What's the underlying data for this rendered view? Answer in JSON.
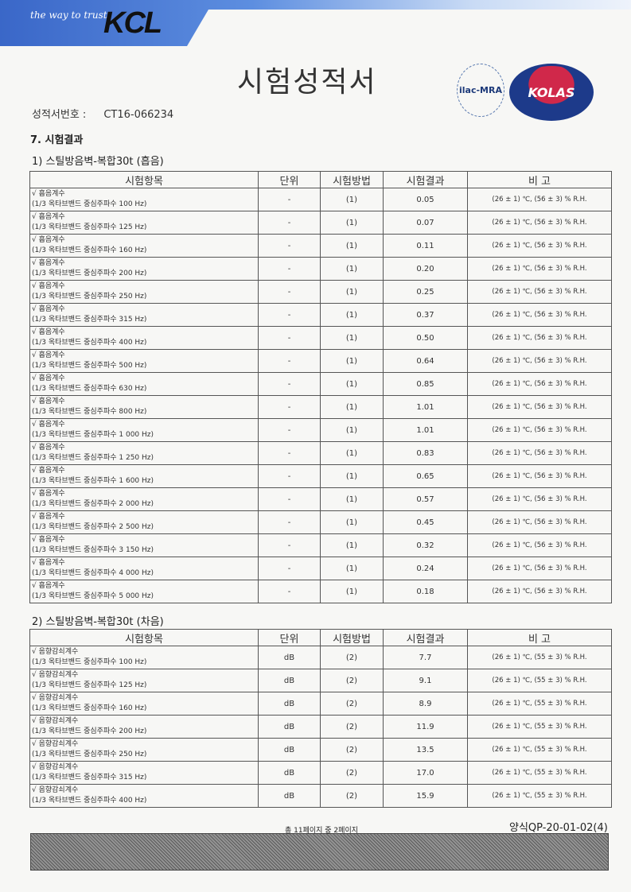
{
  "header": {
    "slogan": "the way to trust",
    "logo": "KCL",
    "title": "시험성적서",
    "ilac": "ilac-MRA",
    "kolas": "KOLAS"
  },
  "report": {
    "label": "성적서번호 :",
    "number": "CT16-066234"
  },
  "section": "7. 시험결과",
  "columns": [
    "시험항목",
    "단위",
    "시험방법",
    "시험결과",
    "비  고"
  ],
  "table1": {
    "title": "1) 스틸방음벽-복합30t (흡음)",
    "rows": [
      {
        "item": "√ 흡음계수",
        "band": "(1/3 옥타브밴드 중심주파수 100 Hz)",
        "unit": "-",
        "method": "(1)",
        "result": "0.05",
        "note": "(26 ± 1) ℃, (56 ± 3) % R.H."
      },
      {
        "item": "√ 흡음계수",
        "band": "(1/3 옥타브밴드 중심주파수 125 Hz)",
        "unit": "-",
        "method": "(1)",
        "result": "0.07",
        "note": "(26 ± 1) ℃, (56 ± 3) % R.H."
      },
      {
        "item": "√ 흡음계수",
        "band": "(1/3 옥타브밴드 중심주파수 160 Hz)",
        "unit": "-",
        "method": "(1)",
        "result": "0.11",
        "note": "(26 ± 1) ℃, (56 ± 3) % R.H."
      },
      {
        "item": "√ 흡음계수",
        "band": "(1/3 옥타브밴드 중심주파수 200 Hz)",
        "unit": "-",
        "method": "(1)",
        "result": "0.20",
        "note": "(26 ± 1) ℃, (56 ± 3) % R.H."
      },
      {
        "item": "√ 흡음계수",
        "band": "(1/3 옥타브밴드 중심주파수 250 Hz)",
        "unit": "-",
        "method": "(1)",
        "result": "0.25",
        "note": "(26 ± 1) ℃, (56 ± 3) % R.H."
      },
      {
        "item": "√ 흡음계수",
        "band": "(1/3 옥타브밴드 중심주파수 315 Hz)",
        "unit": "-",
        "method": "(1)",
        "result": "0.37",
        "note": "(26 ± 1) ℃, (56 ± 3) % R.H."
      },
      {
        "item": "√ 흡음계수",
        "band": "(1/3 옥타브밴드 중심주파수 400 Hz)",
        "unit": "-",
        "method": "(1)",
        "result": "0.50",
        "note": "(26 ± 1) ℃, (56 ± 3) % R.H."
      },
      {
        "item": "√ 흡음계수",
        "band": "(1/3 옥타브밴드 중심주파수 500 Hz)",
        "unit": "-",
        "method": "(1)",
        "result": "0.64",
        "note": "(26 ± 1) ℃, (56 ± 3) % R.H."
      },
      {
        "item": "√ 흡음계수",
        "band": "(1/3 옥타브밴드 중심주파수 630 Hz)",
        "unit": "-",
        "method": "(1)",
        "result": "0.85",
        "note": "(26 ± 1) ℃, (56 ± 3) % R.H."
      },
      {
        "item": "√ 흡음계수",
        "band": "(1/3 옥타브밴드 중심주파수 800 Hz)",
        "unit": "-",
        "method": "(1)",
        "result": "1.01",
        "note": "(26 ± 1) ℃, (56 ± 3) % R.H."
      },
      {
        "item": "√ 흡음계수",
        "band": "(1/3 옥타브밴드 중심주파수 1 000 Hz)",
        "unit": "-",
        "method": "(1)",
        "result": "1.01",
        "note": "(26 ± 1) ℃, (56 ± 3) % R.H."
      },
      {
        "item": "√ 흡음계수",
        "band": "(1/3 옥타브밴드 중심주파수 1 250 Hz)",
        "unit": "-",
        "method": "(1)",
        "result": "0.83",
        "note": "(26 ± 1) ℃, (56 ± 3) % R.H."
      },
      {
        "item": "√ 흡음계수",
        "band": "(1/3 옥타브밴드 중심주파수 1 600 Hz)",
        "unit": "-",
        "method": "(1)",
        "result": "0.65",
        "note": "(26 ± 1) ℃, (56 ± 3) % R.H."
      },
      {
        "item": "√ 흡음계수",
        "band": "(1/3 옥타브밴드 중심주파수 2 000 Hz)",
        "unit": "-",
        "method": "(1)",
        "result": "0.57",
        "note": "(26 ± 1) ℃, (56 ± 3) % R.H."
      },
      {
        "item": "√ 흡음계수",
        "band": "(1/3 옥타브밴드 중심주파수 2 500 Hz)",
        "unit": "-",
        "method": "(1)",
        "result": "0.45",
        "note": "(26 ± 1) ℃, (56 ± 3) % R.H."
      },
      {
        "item": "√ 흡음계수",
        "band": "(1/3 옥타브밴드 중심주파수 3 150 Hz)",
        "unit": "-",
        "method": "(1)",
        "result": "0.32",
        "note": "(26 ± 1) ℃, (56 ± 3) % R.H."
      },
      {
        "item": "√ 흡음계수",
        "band": "(1/3 옥타브밴드 중심주파수 4 000 Hz)",
        "unit": "-",
        "method": "(1)",
        "result": "0.24",
        "note": "(26 ± 1) ℃, (56 ± 3) % R.H."
      },
      {
        "item": "√ 흡음계수",
        "band": "(1/3 옥타브밴드 중심주파수 5 000 Hz)",
        "unit": "-",
        "method": "(1)",
        "result": "0.18",
        "note": "(26 ± 1) ℃, (56 ± 3) % R.H."
      }
    ]
  },
  "table2": {
    "title": "2) 스틸방음벽-복합30t (차음)",
    "rows": [
      {
        "item": "√ 음향감쇠계수",
        "band": "(1/3 옥타브밴드 중심주파수 100 Hz)",
        "unit": "dB",
        "method": "(2)",
        "result": "7.7",
        "note": "(26 ± 1) ℃, (55 ± 3) % R.H."
      },
      {
        "item": "√ 음향감쇠계수",
        "band": "(1/3 옥타브밴드 중심주파수 125 Hz)",
        "unit": "dB",
        "method": "(2)",
        "result": "9.1",
        "note": "(26 ± 1) ℃, (55 ± 3) % R.H."
      },
      {
        "item": "√ 음향감쇠계수",
        "band": "(1/3 옥타브밴드 중심주파수 160 Hz)",
        "unit": "dB",
        "method": "(2)",
        "result": "8.9",
        "note": "(26 ± 1) ℃, (55 ± 3) % R.H."
      },
      {
        "item": "√ 음향감쇠계수",
        "band": "(1/3 옥타브밴드 중심주파수 200 Hz)",
        "unit": "dB",
        "method": "(2)",
        "result": "11.9",
        "note": "(26 ± 1) ℃, (55 ± 3) % R.H."
      },
      {
        "item": "√ 음향감쇠계수",
        "band": "(1/3 옥타브밴드 중심주파수 250 Hz)",
        "unit": "dB",
        "method": "(2)",
        "result": "13.5",
        "note": "(26 ± 1) ℃, (55 ± 3) % R.H."
      },
      {
        "item": "√ 음향감쇠계수",
        "band": "(1/3 옥타브밴드 중심주파수 315 Hz)",
        "unit": "dB",
        "method": "(2)",
        "result": "17.0",
        "note": "(26 ± 1) ℃, (55 ± 3) % R.H."
      },
      {
        "item": "√ 음향감쇠계수",
        "band": "(1/3 옥타브밴드 중심주파수 400 Hz)",
        "unit": "dB",
        "method": "(2)",
        "result": "15.9",
        "note": "(26 ± 1) ℃, (55 ± 3) % R.H."
      }
    ]
  },
  "footer": {
    "page": "총 11페이지 중 2페이지",
    "form": "양식QP-20-01-02(4)"
  }
}
